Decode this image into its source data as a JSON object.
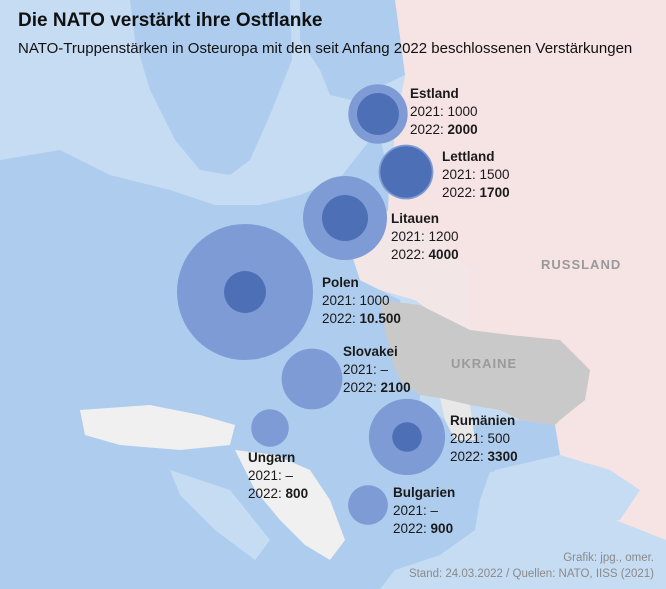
{
  "title": "Die NATO verstärkt ihre Ostflanke",
  "subtitle": "NATO-Truppenstärken in Osteuropa mit den seit Anfang 2022 beschlossenen Verstärkungen",
  "map_labels": {
    "russia": "RUSSLAND",
    "ukraine": "UKRAINE"
  },
  "colors": {
    "sea": "#c6dcf3",
    "nato_land": "#aecdee",
    "russia": "#f6e3e3",
    "ukraine": "#c9c9c9",
    "other_land": "#f0f0f0",
    "bubble_2022": "#7f9bd5",
    "bubble_2021": "#4d6fb5"
  },
  "countries": [
    {
      "name": "Estland",
      "y2021_label": "2021: 1000",
      "y2021": 1000,
      "y2022_prefix": "2022: ",
      "y2022_label": "2000",
      "y2022": 2000
    },
    {
      "name": "Lettland",
      "y2021_label": "2021: 1500",
      "y2021": 1500,
      "y2022_prefix": "2022: ",
      "y2022_label": "1700",
      "y2022": 1700
    },
    {
      "name": "Litauen",
      "y2021_label": "2021: 1200",
      "y2021": 1200,
      "y2022_prefix": "2022: ",
      "y2022_label": "4000",
      "y2022": 4000
    },
    {
      "name": "Polen",
      "y2021_label": "2021: 1000",
      "y2021": 1000,
      "y2022_prefix": "2022: ",
      "y2022_label": "10.500",
      "y2022": 10500
    },
    {
      "name": "Slovakei",
      "y2021_label": "2021: –",
      "y2021": 0,
      "y2022_prefix": "2022: ",
      "y2022_label": "2100",
      "y2022": 2100
    },
    {
      "name": "Rumänien",
      "y2021_label": "2021: 500",
      "y2021": 500,
      "y2022_prefix": "2022: ",
      "y2022_label": "3300",
      "y2022": 3300
    },
    {
      "name": "Ungarn",
      "y2021_label": "2021: –",
      "y2021": 0,
      "y2022_prefix": "2022: ",
      "y2022_label": "800",
      "y2022": 800
    },
    {
      "name": "Bulgarien",
      "y2021_label": "2021: –",
      "y2021": 0,
      "y2022_prefix": "2022: ",
      "y2022_label": "900",
      "y2022": 900
    }
  ],
  "credits": {
    "line1": "Grafik: jpg., omer.",
    "line2": "Stand: 24.03.2022 / Quellen: NATO, IISS (2021)"
  }
}
